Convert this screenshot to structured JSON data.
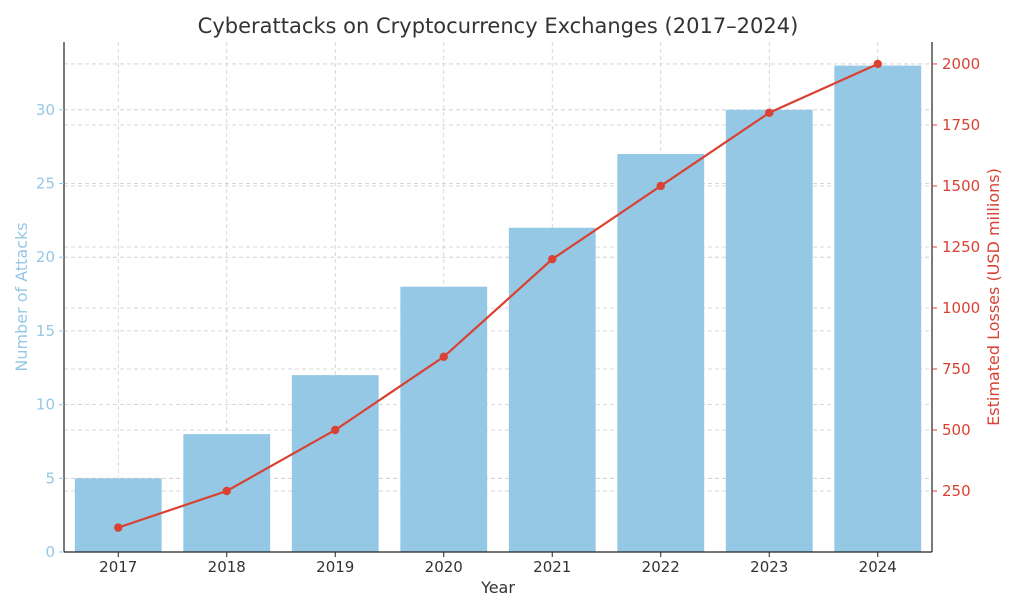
{
  "colors": {
    "bars": "#95c8e4",
    "line": "#d94133",
    "left_axis": "#95c8e4",
    "right_axis": "#d94133",
    "grid": "#cccccc",
    "text": "#333333"
  },
  "chart_data": {
    "type": "bar",
    "title": "Cyberattacks on Cryptocurrency Exchanges (2017–2024)",
    "xlabel": "Year",
    "ylabel": "Number of Attacks",
    "y2label": "Estimated Losses (USD millions)",
    "categories": [
      "2017",
      "2018",
      "2019",
      "2020",
      "2021",
      "2022",
      "2023",
      "2024"
    ],
    "ylim": [
      0,
      34.6
    ],
    "y2lim": [
      0,
      2090
    ],
    "yticks": [
      "0",
      "5",
      "10",
      "15",
      "20",
      "25",
      "30"
    ],
    "y2ticks": [
      "250",
      "500",
      "750",
      "1000",
      "1250",
      "1500",
      "1750",
      "2000"
    ],
    "grid": true,
    "series": [
      {
        "type": "bar",
        "axis": "left",
        "values": [
          5,
          8,
          12,
          18,
          22,
          27,
          30,
          33
        ]
      },
      {
        "type": "line",
        "axis": "right",
        "values": [
          100,
          250,
          500,
          800,
          1200,
          1500,
          1800,
          2000
        ]
      }
    ]
  }
}
